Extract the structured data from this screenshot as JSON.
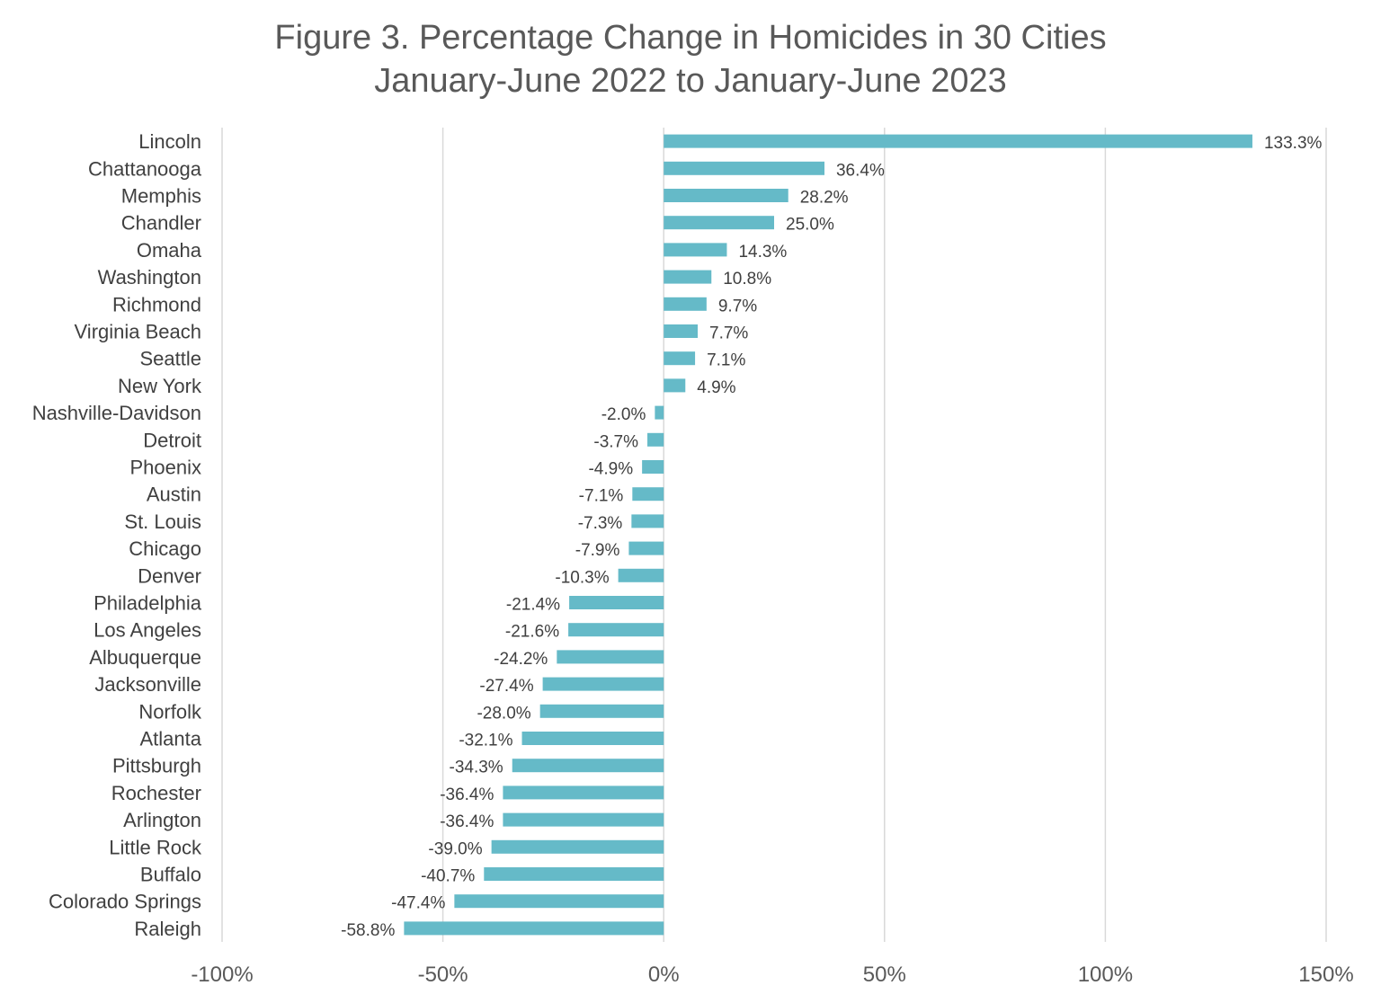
{
  "chart_data": {
    "type": "bar",
    "orientation": "horizontal",
    "title": "Figure 3. Percentage Change in Homicides in 30 Cities",
    "subtitle": "January-June 2022 to January-June 2023",
    "xlabel": "",
    "ylabel": "",
    "xlim": [
      -100,
      150
    ],
    "x_ticks": [
      "-100%",
      "-50%",
      "0%",
      "50%",
      "100%",
      "150%"
    ],
    "x_tick_values": [
      -100,
      -50,
      0,
      50,
      100,
      150
    ],
    "grid": "vertical",
    "legend": "none",
    "bar_color": "#65BAC8",
    "categories": [
      "Lincoln",
      "Chattanooga",
      "Memphis",
      "Chandler",
      "Omaha",
      "Washington",
      "Richmond",
      "Virginia Beach",
      "Seattle",
      "New York",
      "Nashville-Davidson",
      "Detroit",
      "Phoenix",
      "Austin",
      "St. Louis",
      "Chicago",
      "Denver",
      "Philadelphia",
      "Los Angeles",
      "Albuquerque",
      "Jacksonville",
      "Norfolk",
      "Atlanta",
      "Pittsburgh",
      "Rochester",
      "Arlington",
      "Little Rock",
      "Buffalo",
      "Colorado Springs",
      "Raleigh"
    ],
    "values": [
      133.3,
      36.4,
      28.2,
      25.0,
      14.3,
      10.8,
      9.7,
      7.7,
      7.1,
      4.9,
      -2.0,
      -3.7,
      -4.9,
      -7.1,
      -7.3,
      -7.9,
      -10.3,
      -21.4,
      -21.6,
      -24.2,
      -27.4,
      -28.0,
      -32.1,
      -34.3,
      -36.4,
      -36.4,
      -39.0,
      -40.7,
      -47.4,
      -58.8
    ],
    "data_labels": [
      "133.3%",
      "36.4%",
      "28.2%",
      "25.0%",
      "14.3%",
      "10.8%",
      "9.7%",
      "7.7%",
      "7.1%",
      "4.9%",
      "-2.0%",
      "-3.7%",
      "-4.9%",
      "-7.1%",
      "-7.3%",
      "-7.9%",
      "-10.3%",
      "-21.4%",
      "-21.6%",
      "-24.2%",
      "-27.4%",
      "-28.0%",
      "-32.1%",
      "-34.3%",
      "-36.4%",
      "-36.4%",
      "-39.0%",
      "-40.7%",
      "-47.4%",
      "-58.8%"
    ]
  }
}
